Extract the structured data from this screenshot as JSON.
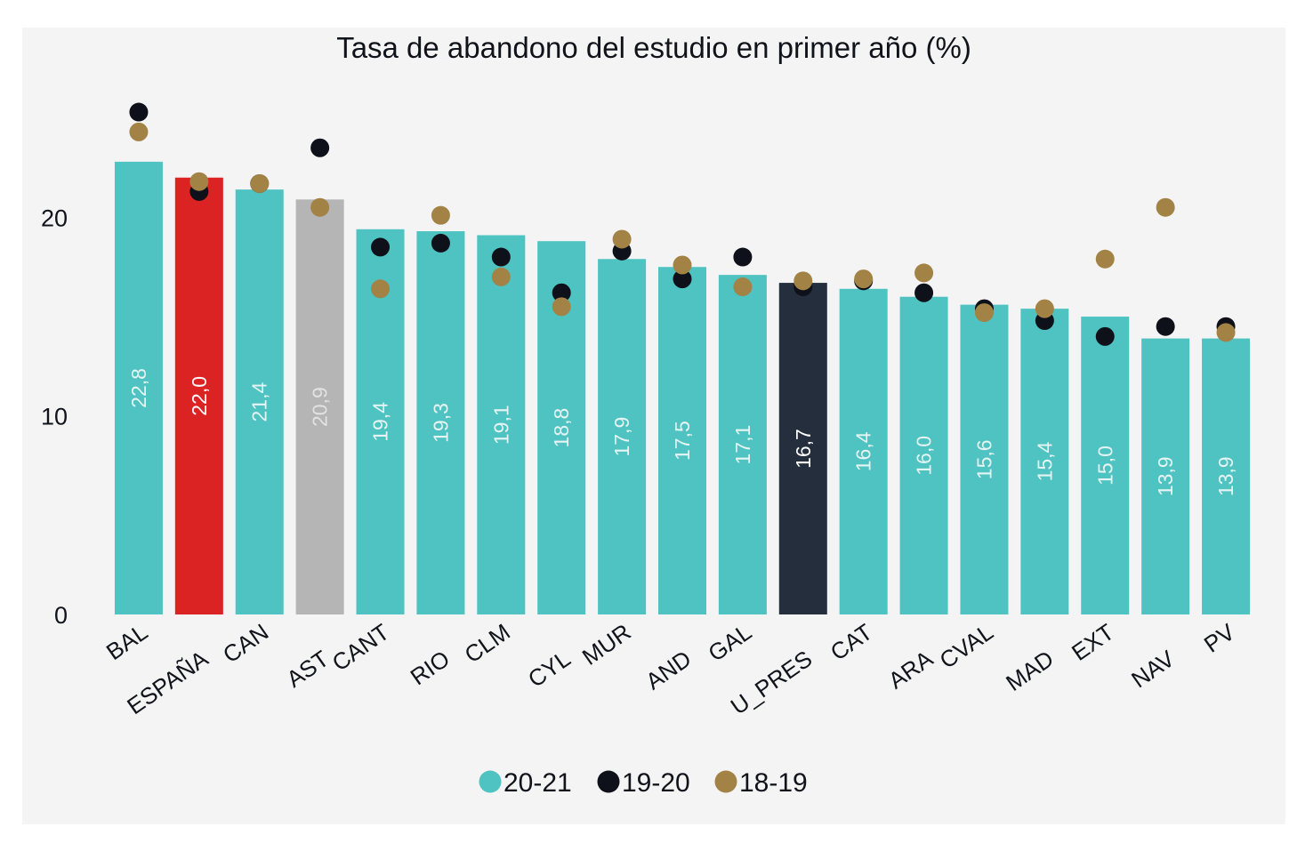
{
  "chart_data": {
    "type": "bar",
    "title": "Tasa de abandono del estudio en primer año (%)",
    "xlabel": "",
    "ylabel": "",
    "ylim": [
      0,
      26.5
    ],
    "yticks": [
      0,
      10,
      20
    ],
    "grid": false,
    "legend_position": "bottom-center",
    "categories": [
      "BAL",
      "ESPAÑA",
      "CAN",
      "AST",
      "CANT",
      "RIO",
      "CLM",
      "CYL",
      "MUR",
      "AND",
      "GAL",
      "U_PRES",
      "CAT",
      "ARA",
      "CVAL",
      "MAD",
      "EXT",
      "NAV",
      "PV"
    ],
    "series": [
      {
        "name": "20-21",
        "mark": "bar",
        "color": "#4fc3c1",
        "values": [
          22.8,
          22.0,
          21.4,
          20.9,
          19.4,
          19.3,
          19.1,
          18.8,
          17.9,
          17.5,
          17.1,
          16.7,
          16.4,
          16.0,
          15.6,
          15.4,
          15.0,
          13.9,
          13.9
        ],
        "labels": [
          "22,8",
          "22,0",
          "21,4",
          "20,9",
          "19,4",
          "19,3",
          "19,1",
          "18,8",
          "17,9",
          "17,5",
          "17,1",
          "16,7",
          "16,4",
          "16,0",
          "15,6",
          "15,4",
          "15,0",
          "13,9",
          "13,9"
        ]
      },
      {
        "name": "19-20",
        "mark": "dot",
        "color": "#0e1119",
        "values": [
          25.3,
          21.3,
          21.7,
          23.5,
          18.5,
          18.7,
          18.0,
          16.2,
          18.3,
          16.9,
          18.0,
          16.5,
          16.8,
          16.2,
          15.4,
          14.8,
          14.0,
          14.5,
          14.5
        ]
      },
      {
        "name": "18-19",
        "mark": "dot",
        "color": "#a38246",
        "values": [
          24.3,
          21.8,
          21.7,
          20.5,
          16.4,
          20.1,
          17.0,
          15.5,
          18.9,
          17.6,
          16.5,
          16.8,
          16.9,
          17.2,
          15.2,
          15.4,
          17.9,
          20.5,
          14.2
        ]
      }
    ],
    "highlight_bars": {
      "ESPAÑA": "#dc2323",
      "AST": "#b5b5b5",
      "U_PRES": "#252e3d"
    },
    "bar_label_colors": {
      "default": "#e6f4f3",
      "ESPAÑA": "#ffffff",
      "AST": "#e2e2e2",
      "U_PRES": "#ffffff"
    }
  }
}
